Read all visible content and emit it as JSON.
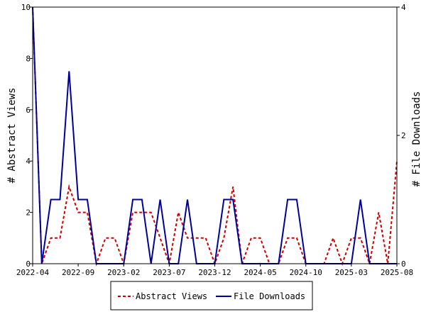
{
  "chart_data": {
    "type": "line",
    "title": "",
    "x_ticks": [
      "2022-04",
      "2022-09",
      "2023-02",
      "2023-07",
      "2023-12",
      "2024-05",
      "2024-10",
      "2025-03",
      "2025-08"
    ],
    "xlim": [
      "2022-04",
      "2025-08"
    ],
    "y_left": {
      "label": "# Abstract Views",
      "ylim": [
        0,
        10
      ],
      "ticks": [
        0,
        2,
        4,
        6,
        8,
        10
      ]
    },
    "y_right": {
      "label": "# File Downloads",
      "ylim": [
        0,
        4
      ],
      "ticks": [
        0,
        2,
        4
      ]
    },
    "grid": false,
    "legend_position": "bottom",
    "series": [
      {
        "name": "Abstract Views",
        "axis": "left",
        "color": "#cc0000",
        "style": "dashed",
        "x": [
          "2022-04",
          "2022-05",
          "2022-06",
          "2022-07",
          "2022-08",
          "2022-09",
          "2022-10",
          "2022-11",
          "2022-12",
          "2023-01",
          "2023-02",
          "2023-03",
          "2023-04",
          "2023-05",
          "2023-06",
          "2023-07",
          "2023-08",
          "2023-09",
          "2023-10",
          "2023-11",
          "2023-12",
          "2024-01",
          "2024-02",
          "2024-03",
          "2024-04",
          "2024-05",
          "2024-06",
          "2024-07",
          "2024-08",
          "2024-09",
          "2024-10",
          "2024-11",
          "2024-12",
          "2025-01",
          "2025-02",
          "2025-03",
          "2025-04",
          "2025-05",
          "2025-06",
          "2025-07",
          "2025-08"
        ],
        "values": [
          10,
          0,
          1,
          1,
          3,
          2,
          2,
          0,
          1,
          1,
          0,
          2,
          2,
          2,
          1,
          0,
          2,
          1,
          1,
          1,
          0,
          1,
          3,
          0,
          1,
          1,
          0,
          0,
          1,
          1,
          0,
          0,
          0,
          1,
          0,
          1,
          1,
          0,
          2,
          0,
          4
        ]
      },
      {
        "name": "File Downloads",
        "axis": "right",
        "color": "#000099",
        "style": "solid",
        "x": [
          "2022-04",
          "2022-05",
          "2022-06",
          "2022-07",
          "2022-08",
          "2022-09",
          "2022-10",
          "2022-11",
          "2022-12",
          "2023-01",
          "2023-02",
          "2023-03",
          "2023-04",
          "2023-05",
          "2023-06",
          "2023-07",
          "2023-08",
          "2023-09",
          "2023-10",
          "2023-11",
          "2023-12",
          "2024-01",
          "2024-02",
          "2024-03",
          "2024-04",
          "2024-05",
          "2024-06",
          "2024-07",
          "2024-08",
          "2024-09",
          "2024-10",
          "2024-11",
          "2024-12",
          "2025-01",
          "2025-02",
          "2025-03",
          "2025-04",
          "2025-05",
          "2025-06",
          "2025-07",
          "2025-08"
        ],
        "values": [
          4,
          0,
          1,
          1,
          3,
          1,
          1,
          0,
          0,
          0,
          0,
          1,
          1,
          0,
          1,
          0,
          0,
          1,
          0,
          0,
          0,
          1,
          1,
          0,
          0,
          0,
          0,
          0,
          1,
          1,
          0,
          0,
          0,
          0,
          0,
          0,
          1,
          0,
          0,
          0,
          0
        ]
      }
    ]
  }
}
